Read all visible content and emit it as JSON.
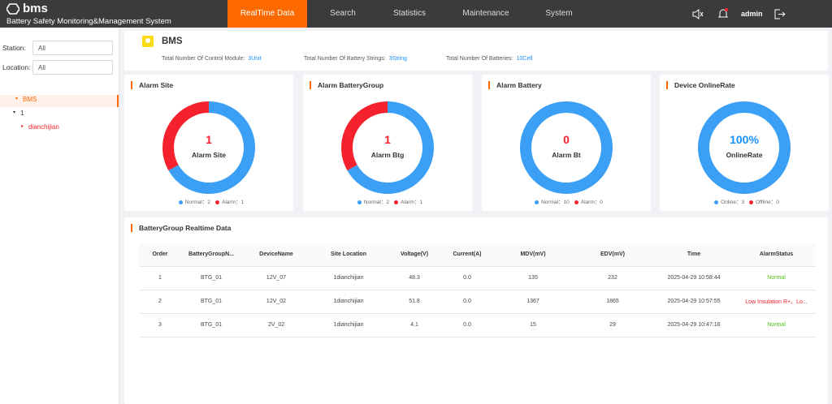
{
  "header": {
    "logo": "bms",
    "subtitle": "Battery Safety Monitoring&Management System",
    "nav": [
      "RealTime Data",
      "Search",
      "Statistics",
      "Maintenance",
      "System"
    ],
    "user": "admin"
  },
  "sidebar": {
    "filters": [
      {
        "label": "Station:",
        "value": "All"
      },
      {
        "label": "Location:",
        "value": "All"
      }
    ],
    "tree": [
      "BMS",
      "1",
      "dianchijian"
    ]
  },
  "summary": {
    "title": "BMS",
    "items": [
      {
        "label": "Total Number Of Control Module:",
        "value": "3Unit"
      },
      {
        "label": "Total Number Of Battery Strings:",
        "value": "3String"
      },
      {
        "label": "Total Number Of Batteries:",
        "value": "10Cell"
      }
    ]
  },
  "cards": [
    {
      "title": "Alarm Site",
      "center_value": "1",
      "center_label": "Alarm Site",
      "segments": [
        {
          "name": "Normal：",
          "value": 2,
          "color": "#3a9ff5"
        },
        {
          "name": "Alarm：",
          "value": 1,
          "color": "#f5222d"
        }
      ]
    },
    {
      "title": "Alarm BatteryGroup",
      "center_value": "1",
      "center_label": "Alarm Btg",
      "segments": [
        {
          "name": "Normal：",
          "value": 2,
          "color": "#3a9ff5"
        },
        {
          "name": "Alarm：",
          "value": 1,
          "color": "#f5222d"
        }
      ]
    },
    {
      "title": "Alarm Battery",
      "center_value": "0",
      "center_label": "Alarm Bt",
      "segments": [
        {
          "name": "Normal：",
          "value": 10,
          "color": "#3a9ff5"
        },
        {
          "name": "Alarm：",
          "value": 0,
          "color": "#f5222d"
        }
      ]
    },
    {
      "title": "Device OnlineRate",
      "center_value": "100%",
      "center_label": "OnlineRate",
      "segments": [
        {
          "name": "Online：",
          "value": 3,
          "color": "#3a9ff5"
        },
        {
          "name": "Offline：",
          "value": 0,
          "color": "#f5222d"
        }
      ]
    }
  ],
  "table": {
    "title": "BatteryGroup Realtime Data",
    "columns": [
      "Order",
      "BatteryGroupN...",
      "DeviceName",
      "Site Location",
      "Voltage(V)",
      "Current(A)",
      "MDV(mV)",
      "EDV(mV)",
      "Time",
      "AlarmStatus"
    ],
    "rows": [
      {
        "cells": [
          "1",
          "BTG_01",
          "12V_07",
          "1dianchijian",
          "48.3",
          "0.0",
          "135",
          "232",
          "2025-04-29 10:58:44",
          "Normal"
        ],
        "status_color": "#52c41a"
      },
      {
        "cells": [
          "2",
          "BTG_01",
          "12V_02",
          "1dianchijian",
          "51.8",
          "0.0",
          "1367",
          "1865",
          "2025-04-29 10:57:55",
          "Low Insulation R+、Lo..."
        ],
        "status_color": "#f5222d"
      },
      {
        "cells": [
          "3",
          "BTG_01",
          "2V_02",
          "1dianchijian",
          "4.1",
          "0.0",
          "15",
          "29",
          "2025-04-29 10:47:16",
          "Normal"
        ],
        "status_color": "#52c41a"
      }
    ]
  }
}
